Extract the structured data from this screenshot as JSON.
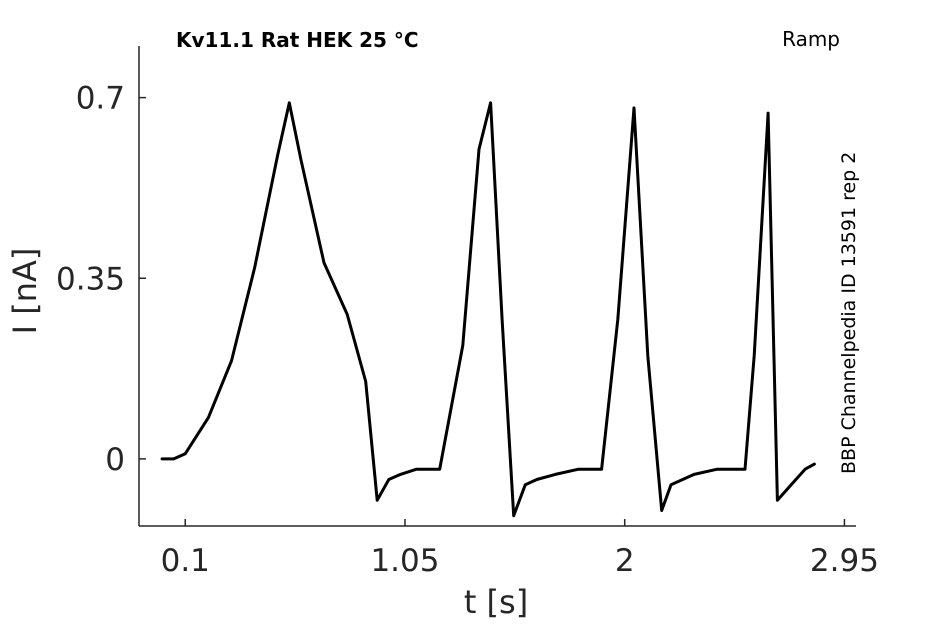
{
  "chart_data": {
    "type": "line",
    "title": "Kv11.1  Rat  HEK  25 °C",
    "protocol": "Ramp",
    "source_label": "BBP Channelpedia ID 13591 rep 2",
    "xlabel": "t [s]",
    "ylabel": "I [nA]",
    "xlim": [
      -0.1,
      3.0
    ],
    "ylim": [
      -0.13,
      0.8
    ],
    "xticks": [
      0.1,
      1.05,
      2,
      2.95
    ],
    "xtick_labels": [
      "0.1",
      "1.05",
      "2",
      "2.95"
    ],
    "yticks": [
      0,
      0.35,
      0.7
    ],
    "ytick_labels": [
      "0",
      "0.35",
      "0.7"
    ],
    "grid": false,
    "line_color": "#000000",
    "series": [
      {
        "x": [
          0.0,
          0.05,
          0.1,
          0.2,
          0.3,
          0.4,
          0.5,
          0.55,
          0.6,
          0.7,
          0.8,
          0.88,
          0.93,
          0.98,
          1.03,
          1.1,
          1.2,
          1.3,
          1.37,
          1.42,
          1.47,
          1.52,
          1.57,
          1.62,
          1.7,
          1.8,
          1.9,
          1.97,
          2.04,
          2.1,
          2.16,
          2.2,
          2.3,
          2.4,
          2.52,
          2.56,
          2.62,
          2.66,
          2.72,
          2.78,
          2.82
        ],
        "y": [
          0.0,
          0.0,
          0.01,
          0.08,
          0.19,
          0.37,
          0.59,
          0.69,
          0.58,
          0.38,
          0.28,
          0.15,
          -0.08,
          -0.04,
          -0.03,
          -0.02,
          -0.02,
          0.22,
          0.6,
          0.69,
          0.27,
          -0.11,
          -0.05,
          -0.04,
          -0.03,
          -0.02,
          -0.02,
          0.27,
          0.68,
          0.2,
          -0.1,
          -0.05,
          -0.03,
          -0.02,
          -0.02,
          0.2,
          0.67,
          -0.08,
          -0.05,
          -0.02,
          -0.01
        ]
      }
    ]
  }
}
